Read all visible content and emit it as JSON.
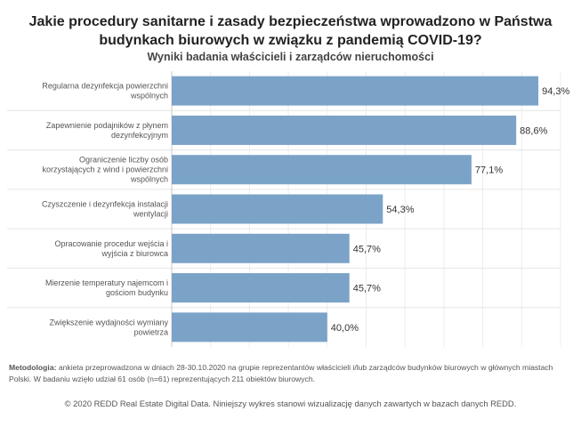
{
  "title_line1": "Jakie procedury sanitarne i zasady bezpieczeństwa wprowadzono w Państwa",
  "title_line2": "budynkach biurowych w związku z pandemią COVID-19?",
  "subtitle": "Wyniki badania właścicieli i zarządców nieruchomości",
  "methodology_label": "Metodologia:",
  "methodology_text": "ankieta przeprowadzona w dniach 28-30.10.2020 na grupie reprezentantów właścicieli i/lub zarządców budynków biurowych w głównych miastach Polski. W badaniu wzięło udział 61 osób (n=61) reprezentujących 211 obiektów biurowych.",
  "copyright": "© 2020 REDD Real Estate Digital Data. Niniejszy wykres stanowi wizualizację danych zawartych w bazach danych REDD.",
  "chart_data": {
    "type": "bar",
    "orientation": "horizontal",
    "categories": [
      [
        "Regularna dezynfekcja powierzchni",
        "wspólnych"
      ],
      [
        "Zapewnienie podajników z płynem",
        "dezynfekcyjnym"
      ],
      [
        "Ograniczenie liczby osób",
        "korzystających z wind i powierzchni",
        "wspólnych"
      ],
      [
        "Czyszczenie i dezynfekcja instalacji",
        "wentylacji"
      ],
      [
        "Opracowanie procedur wejścia i",
        "wyjścia z biurowca"
      ],
      [
        "Mierzenie temperatury najemcom i",
        "gościom budynku"
      ],
      [
        "Zwiększenie wydajności wymiany",
        "powietrza"
      ]
    ],
    "values": [
      94.3,
      88.6,
      77.1,
      54.3,
      45.7,
      45.7,
      40.0
    ],
    "value_labels": [
      "94,3%",
      "88,6%",
      "77,1%",
      "54,3%",
      "45,7%",
      "45,7%",
      "40,0%"
    ],
    "xlim": [
      0,
      100
    ],
    "bar_color": "#7ba3c8",
    "grid": "vertical"
  }
}
